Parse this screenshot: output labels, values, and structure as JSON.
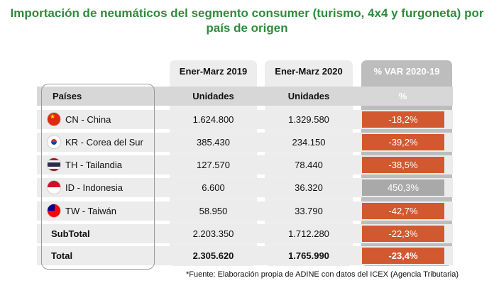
{
  "chart_data": {
    "type": "table",
    "title": "Importación de neumáticos del segmento consumer (turismo, 4x4 y furgoneta) por país de origen",
    "title_lines": [
      "Importación de neumáticos del segmento consumer (turismo, 4x4 y furgoneta) por",
      "país de origen"
    ],
    "periods": [
      "Ener-Marz 2019",
      "Ener-Marz 2020",
      "% VAR 2020-19"
    ],
    "columns": [
      "Países",
      "Unidades",
      "Unidades",
      "%"
    ],
    "rows": [
      {
        "country": "CN - China",
        "flag_icon": "china-flag-icon",
        "v2019": "1.624.800",
        "v2020": "1.329.580",
        "var": "-18,2%",
        "sign": "neg"
      },
      {
        "country": "KR - Corea del Sur",
        "flag_icon": "south-korea-flag-icon",
        "v2019": "385.430",
        "v2020": "234.150",
        "var": "-39,2%",
        "sign": "neg"
      },
      {
        "country": "TH - Tailandia",
        "flag_icon": "thailand-flag-icon",
        "v2019": "127.570",
        "v2020": "78.440",
        "var": "-38,5%",
        "sign": "neg"
      },
      {
        "country": "ID - Indonesia",
        "flag_icon": "indonesia-flag-icon",
        "v2019": "6.600",
        "v2020": "36.320",
        "var": "450,3%",
        "sign": "pos"
      },
      {
        "country": "TW - Taiwán",
        "flag_icon": "taiwan-flag-icon",
        "v2019": "58.950",
        "v2020": "33.790",
        "var": "-42,7%",
        "sign": "neg"
      }
    ],
    "subtotal": {
      "label": "SubTotal",
      "v2019": "2.203.350",
      "v2020": "1.712.280",
      "var": "-22,3%"
    },
    "total": {
      "label": "Total",
      "v2019": "2.305.620",
      "v2020": "1.765.990",
      "var": "-23,4%"
    },
    "footnote": "*Fuente: Elaboración propia de ADINE con datos del ICEX (Agencia Tributaria)"
  },
  "colors": {
    "title": "#2e8b3c",
    "negative": "#d2582f",
    "positive": "#a9a9a9",
    "header_band": "#d7d7d7",
    "row_band": "#ececec"
  }
}
